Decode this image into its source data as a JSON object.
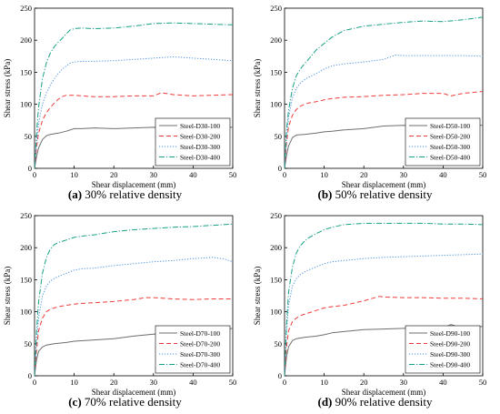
{
  "chart_data": [
    {
      "type": "line",
      "panel_label": "(a)",
      "caption": "30% relative density",
      "xlabel": "Shear displacement (mm)",
      "ylabel": "Shear stress (kPa)",
      "xlim": [
        0,
        50
      ],
      "ylim": [
        0,
        250
      ],
      "xticks": [
        0,
        10,
        20,
        30,
        40,
        50
      ],
      "yticks": [
        0,
        50,
        100,
        150,
        200,
        250
      ],
      "legend_position": "bottom-right",
      "series": [
        {
          "name": "Steel-D30-100",
          "style": "solid",
          "color": "#6e6e6e",
          "x": [
            0,
            0.5,
            1,
            2,
            3,
            4,
            5,
            6,
            8,
            10,
            12,
            15,
            20,
            25,
            30,
            35,
            40,
            45,
            50
          ],
          "y": [
            0,
            18,
            32,
            45,
            51,
            53,
            54,
            55,
            58,
            62,
            62,
            63,
            62,
            63,
            64,
            63,
            64,
            65,
            64
          ]
        },
        {
          "name": "Steel-D30-200",
          "style": "dashed",
          "color": "#ee3a3a",
          "x": [
            0,
            0.5,
            1,
            2,
            3,
            4,
            5,
            6,
            7,
            8,
            10,
            12,
            15,
            20,
            25,
            30,
            32,
            35,
            40,
            45,
            50
          ],
          "y": [
            0,
            32,
            55,
            75,
            87,
            95,
            102,
            108,
            112,
            114,
            114,
            113,
            112,
            112,
            113,
            113,
            118,
            115,
            113,
            114,
            115
          ]
        },
        {
          "name": "Steel-D30-300",
          "style": "dotted",
          "color": "#4a90e2",
          "x": [
            0,
            0.5,
            1,
            2,
            3,
            4,
            5,
            6,
            7,
            8,
            9,
            10,
            12,
            15,
            20,
            25,
            30,
            35,
            40,
            45,
            50
          ],
          "y": [
            0,
            40,
            70,
            100,
            118,
            130,
            140,
            148,
            155,
            160,
            164,
            166,
            167,
            167,
            168,
            170,
            172,
            174,
            172,
            170,
            168
          ]
        },
        {
          "name": "Steel-D30-400",
          "style": "dashdot",
          "color": "#16a085",
          "x": [
            0,
            0.5,
            1,
            2,
            3,
            4,
            5,
            6,
            7,
            8,
            9,
            10,
            12,
            15,
            20,
            25,
            30,
            35,
            40,
            45,
            50
          ],
          "y": [
            0,
            55,
            95,
            140,
            165,
            180,
            190,
            197,
            203,
            210,
            216,
            218,
            219,
            218,
            219,
            222,
            226,
            227,
            226,
            225,
            224
          ]
        }
      ]
    },
    {
      "type": "line",
      "panel_label": "(b)",
      "caption": "50% relative density",
      "xlabel": "Shear displacement (mm)",
      "ylabel": "Shear stress (kPa)",
      "xlim": [
        0,
        50
      ],
      "ylim": [
        0,
        250
      ],
      "xticks": [
        0,
        10,
        20,
        30,
        40,
        50
      ],
      "yticks": [
        0,
        50,
        100,
        150,
        200,
        250
      ],
      "legend_position": "bottom-right",
      "series": [
        {
          "name": "Steel-D50-100",
          "style": "solid",
          "color": "#6e6e6e",
          "x": [
            0,
            0.5,
            1,
            2,
            3,
            5,
            8,
            10,
            12,
            15,
            20,
            25,
            30,
            35,
            40,
            45,
            50
          ],
          "y": [
            0,
            20,
            35,
            48,
            52,
            53,
            55,
            57,
            58,
            60,
            62,
            66,
            67,
            66,
            67,
            68,
            67
          ]
        },
        {
          "name": "Steel-D50-200",
          "style": "dashed",
          "color": "#ee3a3a",
          "x": [
            0,
            0.5,
            1,
            2,
            3,
            4,
            5,
            6,
            8,
            10,
            12,
            15,
            20,
            25,
            30,
            35,
            40,
            42,
            45,
            50
          ],
          "y": [
            0,
            40,
            65,
            83,
            92,
            97,
            100,
            102,
            104,
            107,
            109,
            111,
            112,
            114,
            115,
            117,
            117,
            113,
            117,
            120
          ]
        },
        {
          "name": "Steel-D50-300",
          "style": "dotted",
          "color": "#4a90e2",
          "x": [
            0,
            0.5,
            1,
            2,
            3,
            4,
            5,
            6,
            8,
            10,
            12,
            15,
            20,
            25,
            28,
            30,
            35,
            40,
            45,
            50
          ],
          "y": [
            0,
            50,
            80,
            110,
            125,
            133,
            138,
            142,
            148,
            155,
            160,
            163,
            166,
            170,
            177,
            176,
            176,
            176,
            176,
            175
          ]
        },
        {
          "name": "Steel-D50-400",
          "style": "dashdot",
          "color": "#16a085",
          "x": [
            0,
            0.5,
            1,
            2,
            3,
            4,
            5,
            6,
            8,
            10,
            12,
            15,
            20,
            25,
            30,
            35,
            40,
            45,
            50
          ],
          "y": [
            0,
            60,
            90,
            125,
            145,
            155,
            163,
            170,
            185,
            195,
            205,
            215,
            222,
            225,
            228,
            230,
            229,
            232,
            236
          ]
        }
      ]
    },
    {
      "type": "line",
      "panel_label": "(c)",
      "caption": "70% relative density",
      "xlabel": "Shear displacement (mm)",
      "ylabel": "Shear stress (kPa)",
      "xlim": [
        0,
        50
      ],
      "ylim": [
        0,
        250
      ],
      "xticks": [
        0,
        10,
        20,
        30,
        40,
        50
      ],
      "yticks": [
        0,
        50,
        100,
        150,
        200,
        250
      ],
      "legend_position": "bottom-right",
      "series": [
        {
          "name": "Steel-D70-100",
          "style": "solid",
          "color": "#6e6e6e",
          "x": [
            0,
            0.5,
            1,
            2,
            3,
            5,
            8,
            10,
            15,
            20,
            25,
            30,
            35,
            40,
            45,
            50
          ],
          "y": [
            0,
            25,
            38,
            45,
            48,
            50,
            52,
            54,
            56,
            58,
            62,
            65,
            67,
            68,
            70,
            74
          ]
        },
        {
          "name": "Steel-D70-200",
          "style": "dashed",
          "color": "#ee3a3a",
          "x": [
            0,
            0.5,
            1,
            2,
            3,
            4,
            5,
            6,
            8,
            10,
            12,
            15,
            20,
            25,
            28,
            30,
            35,
            40,
            45,
            50
          ],
          "y": [
            0,
            40,
            70,
            90,
            100,
            104,
            106,
            108,
            110,
            112,
            113,
            114,
            116,
            119,
            122,
            122,
            120,
            119,
            120,
            120
          ]
        },
        {
          "name": "Steel-D70-300",
          "style": "dotted",
          "color": "#4a90e2",
          "x": [
            0,
            0.5,
            1,
            2,
            3,
            4,
            5,
            6,
            8,
            10,
            12,
            15,
            20,
            25,
            30,
            35,
            40,
            45,
            48,
            50
          ],
          "y": [
            0,
            55,
            90,
            125,
            140,
            148,
            152,
            155,
            160,
            165,
            167,
            168,
            172,
            175,
            178,
            180,
            183,
            185,
            182,
            178
          ]
        },
        {
          "name": "Steel-D70-400",
          "style": "dashdot",
          "color": "#16a085",
          "x": [
            0,
            0.5,
            1,
            2,
            3,
            4,
            5,
            6,
            8,
            10,
            12,
            15,
            20,
            25,
            30,
            35,
            40,
            45,
            50
          ],
          "y": [
            0,
            70,
            115,
            160,
            185,
            198,
            205,
            208,
            212,
            216,
            218,
            220,
            225,
            228,
            230,
            232,
            233,
            235,
            237
          ]
        }
      ]
    },
    {
      "type": "line",
      "panel_label": "(d)",
      "caption": "90% relative density",
      "xlabel": "Shear displacement (mm)",
      "ylabel": "Shear stress (kPa)",
      "xlim": [
        0,
        50
      ],
      "ylim": [
        0,
        250
      ],
      "xticks": [
        0,
        10,
        20,
        30,
        40,
        50
      ],
      "yticks": [
        0,
        50,
        100,
        150,
        200,
        250
      ],
      "legend_position": "bottom-right",
      "series": [
        {
          "name": "Steel-D90-100",
          "style": "solid",
          "color": "#6e6e6e",
          "x": [
            0,
            0.5,
            1,
            2,
            3,
            5,
            8,
            10,
            12,
            15,
            20,
            25,
            30,
            35,
            40,
            42,
            45,
            50
          ],
          "y": [
            0,
            30,
            45,
            55,
            58,
            60,
            62,
            64,
            67,
            69,
            72,
            73,
            74,
            74,
            75,
            80,
            74,
            77
          ]
        },
        {
          "name": "Steel-D90-200",
          "style": "dashed",
          "color": "#ee3a3a",
          "x": [
            0,
            0.5,
            1,
            2,
            3,
            4,
            5,
            6,
            8,
            10,
            12,
            15,
            20,
            24,
            25,
            30,
            35,
            40,
            45,
            50
          ],
          "y": [
            0,
            45,
            70,
            85,
            90,
            94,
            96,
            98,
            102,
            106,
            108,
            110,
            117,
            124,
            123,
            122,
            122,
            121,
            121,
            120
          ]
        },
        {
          "name": "Steel-D90-300",
          "style": "dotted",
          "color": "#4a90e2",
          "x": [
            0,
            0.5,
            1,
            2,
            3,
            4,
            5,
            6,
            8,
            10,
            12,
            15,
            20,
            25,
            30,
            35,
            40,
            45,
            50
          ],
          "y": [
            0,
            70,
            110,
            140,
            152,
            158,
            162,
            165,
            170,
            175,
            178,
            180,
            183,
            185,
            186,
            187,
            188,
            189,
            190
          ]
        },
        {
          "name": "Steel-D90-400",
          "style": "dashdot",
          "color": "#16a085",
          "x": [
            0,
            0.5,
            1,
            2,
            3,
            4,
            5,
            6,
            8,
            10,
            12,
            15,
            20,
            25,
            30,
            35,
            40,
            45,
            50
          ],
          "y": [
            0,
            80,
            130,
            170,
            192,
            203,
            210,
            215,
            222,
            228,
            232,
            236,
            238,
            238,
            238,
            238,
            237,
            237,
            236
          ]
        }
      ]
    }
  ]
}
